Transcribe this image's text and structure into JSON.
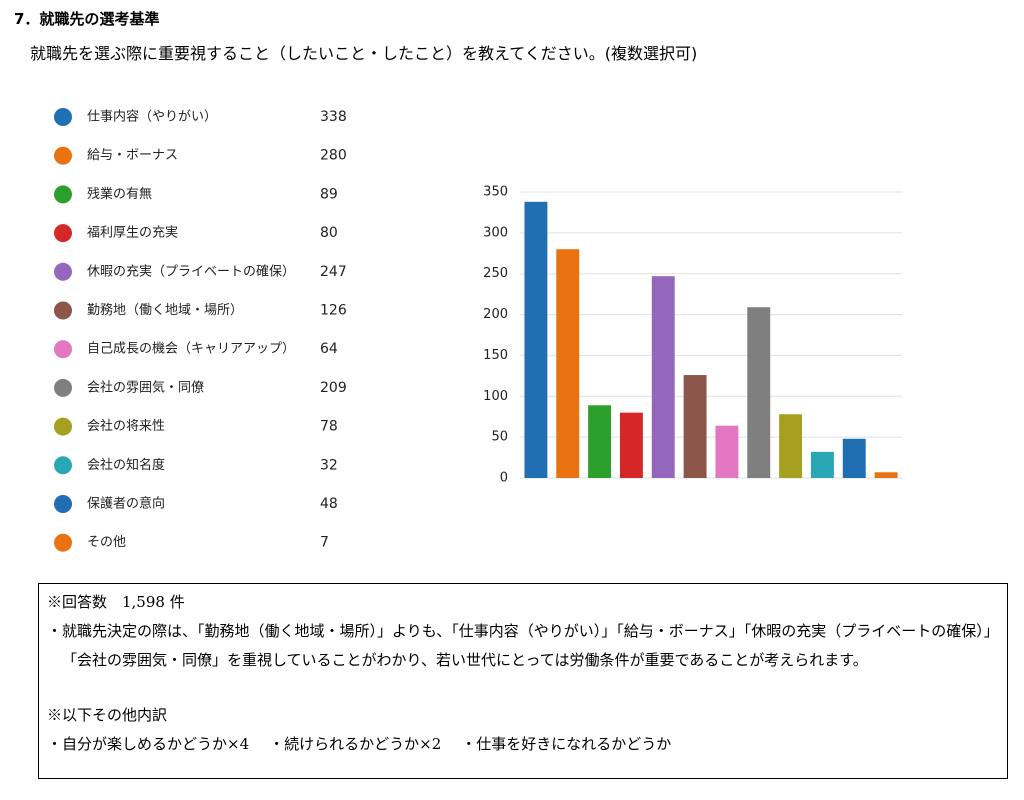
{
  "heading": "7．就職先の選考基準",
  "question": "就職先を選ぶ際に重要視すること（したいこと・したこと）を教えてください。(複数選択可)",
  "chart_data": {
    "type": "bar",
    "categories": [
      "仕事内容（やりがい）",
      "給与・ボーナス",
      "残業の有無",
      "福利厚生の充実",
      "休暇の充実（プライベートの確保）",
      "勤務地（働く地域・場所）",
      "自己成長の機会（キャリアアップ）",
      "会社の雰囲気・同僚",
      "会社の将来性",
      "会社の知名度",
      "保護者の意向",
      "その他"
    ],
    "values": [
      338,
      280,
      89,
      80,
      247,
      126,
      64,
      209,
      78,
      32,
      48,
      7
    ],
    "colors": [
      "#1f6fb2",
      "#ea7210",
      "#2ca02c",
      "#d62728",
      "#9467bd",
      "#8c564b",
      "#e377c2",
      "#7f7f7f",
      "#a6a020",
      "#2aa7b5",
      "#1f6fb2",
      "#ea7210"
    ],
    "ylim": [
      0,
      350
    ],
    "yticks": [
      0,
      50,
      100,
      150,
      200,
      250,
      300,
      350
    ],
    "grid": true
  },
  "notes": {
    "count": "※回答数　1,598 件",
    "summary": "・就職先決定の際は、「勤務地（働く地域・場所）」よりも、「仕事内容（やりがい）」「給与・ボーナス」「休暇の充実（プライベートの確保）」「会社の雰囲気・同僚」を重視していることがわかり、若い世代にとっては労働条件が重要であることが考えられます。",
    "other_heading": "※以下その他内訳",
    "other_items": [
      "・自分が楽しめるかどうか×4",
      "・続けられるかどうか×2",
      "・仕事を好きになれるかどうか"
    ]
  }
}
